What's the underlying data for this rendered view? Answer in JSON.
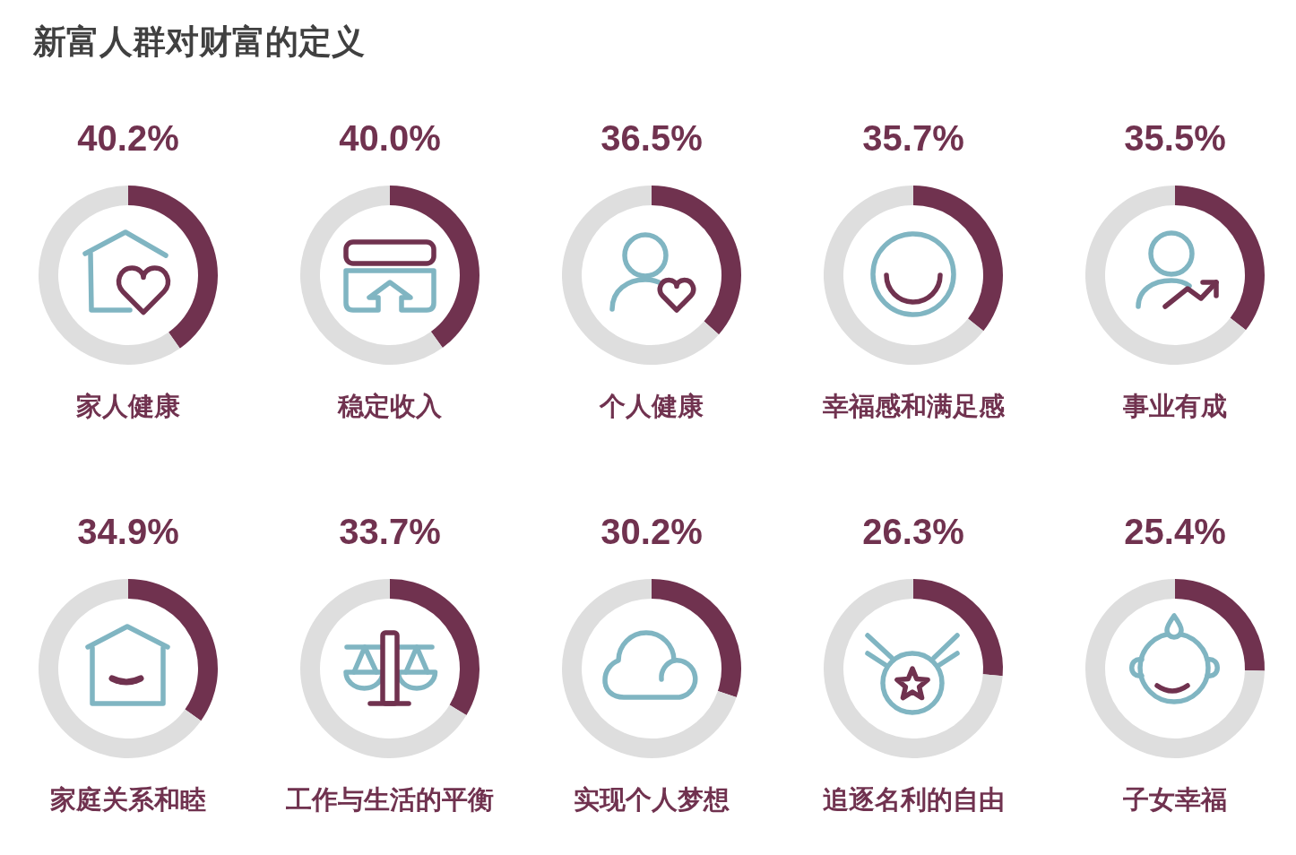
{
  "chart_data": [
    {
      "type": "donut",
      "title": "新富人群对财富的定义",
      "xlabel": "家人健康",
      "categories": [
        null,
        null
      ],
      "values": [
        40.2,
        59.8
      ],
      "colors": [
        "#70324f",
        "#dedede"
      ],
      "value_labels": [
        "40.2%",
        null
      ]
    },
    {
      "type": "donut",
      "xlabel": "稳定收入",
      "categories": [
        null,
        null
      ],
      "values": [
        40.0,
        60.0
      ],
      "colors": [
        "#70324f",
        "#dedede"
      ],
      "value_labels": [
        "40.0%",
        null
      ]
    },
    {
      "type": "donut",
      "xlabel": "个人健康",
      "categories": [
        null,
        null
      ],
      "values": [
        36.5,
        63.5
      ],
      "colors": [
        "#70324f",
        "#dedede"
      ],
      "value_labels": [
        "36.5%",
        null
      ]
    },
    {
      "type": "donut",
      "xlabel": "幸福感和满足感",
      "categories": [
        null,
        null
      ],
      "values": [
        35.7,
        64.3
      ],
      "colors": [
        "#70324f",
        "#dedede"
      ],
      "value_labels": [
        "35.7%",
        null
      ]
    },
    {
      "type": "donut",
      "xlabel": "事业有成",
      "categories": [
        null,
        null
      ],
      "values": [
        35.5,
        64.5
      ],
      "colors": [
        "#70324f",
        "#dedede"
      ],
      "value_labels": [
        "35.5%",
        null
      ]
    },
    {
      "type": "donut",
      "xlabel": "家庭关系和睦",
      "categories": [
        null,
        null
      ],
      "values": [
        34.9,
        65.1
      ],
      "colors": [
        "#70324f",
        "#dedede"
      ],
      "value_labels": [
        "34.9%",
        null
      ]
    },
    {
      "type": "donut",
      "xlabel": "工作与生活的平衡",
      "categories": [
        null,
        null
      ],
      "values": [
        33.7,
        66.3
      ],
      "colors": [
        "#70324f",
        "#dedede"
      ],
      "value_labels": [
        "33.7%",
        null
      ]
    },
    {
      "type": "donut",
      "xlabel": "实现个人梦想",
      "categories": [
        null,
        null
      ],
      "values": [
        30.2,
        69.8
      ],
      "colors": [
        "#70324f",
        "#dedede"
      ],
      "value_labels": [
        "30.2%",
        null
      ]
    },
    {
      "type": "donut",
      "xlabel": "追逐名利的自由",
      "categories": [
        null,
        null
      ],
      "values": [
        26.3,
        73.7
      ],
      "colors": [
        "#70324f",
        "#dedede"
      ],
      "value_labels": [
        "26.3%",
        null
      ]
    },
    {
      "type": "donut",
      "xlabel": "子女幸福",
      "categories": [
        null,
        null
      ],
      "values": [
        25.4,
        74.6
      ],
      "colors": [
        "#70324f",
        "#dedede"
      ],
      "value_labels": [
        "25.4%",
        null
      ]
    }
  ]
}
